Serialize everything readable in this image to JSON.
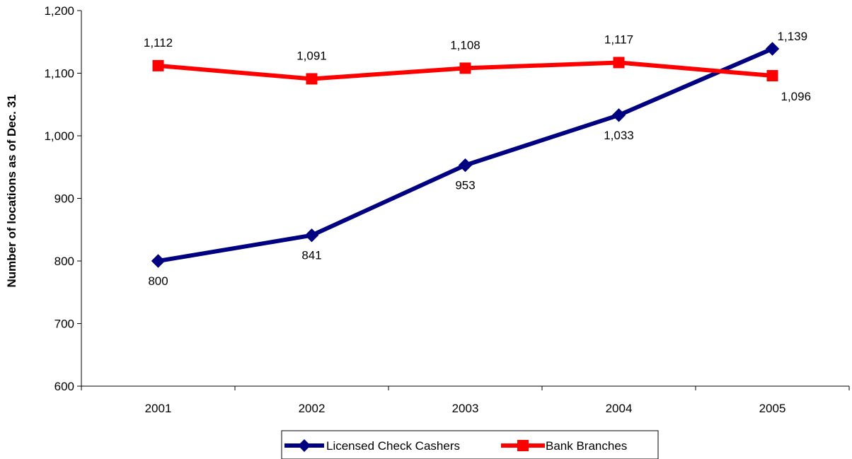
{
  "chart_data": {
    "type": "line",
    "title": "",
    "xlabel": "",
    "ylabel": "Number of locations as of Dec. 31",
    "categories": [
      "2001",
      "2002",
      "2003",
      "2004",
      "2005"
    ],
    "ylim": [
      600,
      1200
    ],
    "yticks": [
      600,
      700,
      800,
      900,
      1000,
      1100,
      1200
    ],
    "ytick_labels": [
      "600",
      "700",
      "800",
      "900",
      "1,000",
      "1,100",
      "1,200"
    ],
    "grid": false,
    "legend_position": "bottom",
    "series": [
      {
        "name": "Licensed Check Cashers",
        "values": [
          800,
          841,
          953,
          1033,
          1139
        ],
        "labels": [
          "800",
          "841",
          "953",
          "1,033",
          "1,139"
        ],
        "label_positions": [
          "below",
          "below",
          "below",
          "below",
          "right"
        ],
        "color": "#000080",
        "marker": "diamond"
      },
      {
        "name": "Bank Branches",
        "values": [
          1112,
          1091,
          1108,
          1117,
          1096
        ],
        "labels": [
          "1,112",
          "1,091",
          "1,108",
          "1,117",
          "1,096"
        ],
        "label_positions": [
          "above",
          "above",
          "above",
          "above",
          "below-right"
        ],
        "color": "#ff0000",
        "marker": "square"
      }
    ]
  }
}
